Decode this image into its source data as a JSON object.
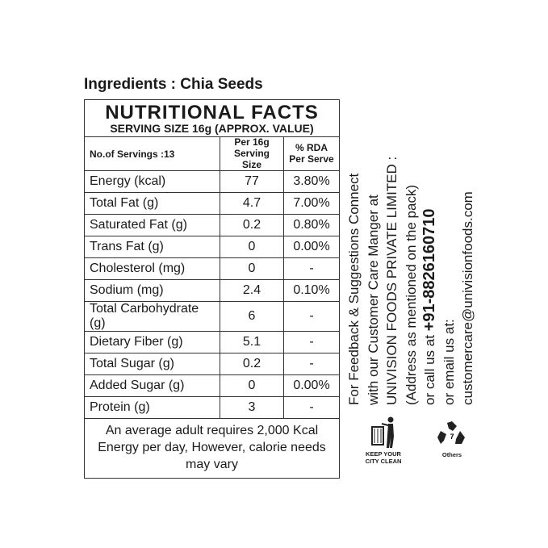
{
  "ingredients": "Ingredients : Chia Seeds",
  "facts": {
    "title": "NUTRITIONAL FACTS",
    "serving": "SERVING SIZE 16g (APPROX. VALUE)",
    "servings": "No.of Servings :13",
    "col2": "Per 16g Serving Size",
    "col3": "% RDA Per Serve",
    "rows": [
      {
        "n": "Energy  (kcal)",
        "v": "77",
        "r": "3.80%"
      },
      {
        "n": "Total Fat (g)",
        "v": "4.7",
        "r": "7.00%"
      },
      {
        "n": "Saturated Fat (g)",
        "v": "0.2",
        "r": "0.80%"
      },
      {
        "n": "Trans Fat (g)",
        "v": "0",
        "r": "0.00%"
      },
      {
        "n": "Cholesterol (mg)",
        "v": "0",
        "r": "-"
      },
      {
        "n": "Sodium (mg)",
        "v": "2.4",
        "r": "0.10%"
      },
      {
        "n": "Total Carbohydrate (g)",
        "v": "6",
        "r": "-"
      },
      {
        "n": "Dietary Fiber (g)",
        "v": "5.1",
        "r": "-"
      },
      {
        "n": "Total Sugar (g)",
        "v": "0.2",
        "r": "-"
      },
      {
        "n": "Added Sugar (g)",
        "v": "0",
        "r": "0.00%"
      },
      {
        "n": "Protein (g)",
        "v": "3",
        "r": "-"
      }
    ],
    "footer": "An average adult requires 2,000 Kcal Energy per day, However, calorie needs may vary"
  },
  "contact": {
    "l1": "For Feedback & Suggestions Connect",
    "l2": "with our Customer Care Manger at",
    "l3": "UNIVISION FOODS PRIVATE LIMITED :",
    "l4": "(Address as mentioned on the pack)",
    "l5a": "or call us at ",
    "phone": "+91-8826160710",
    "l6": "or email us at:",
    "email": "customercare@univisionfoods.com"
  },
  "icons": {
    "keep_clean": "KEEP YOUR CITY CLEAN",
    "recycle_num": "7",
    "recycle_label": "Others"
  }
}
